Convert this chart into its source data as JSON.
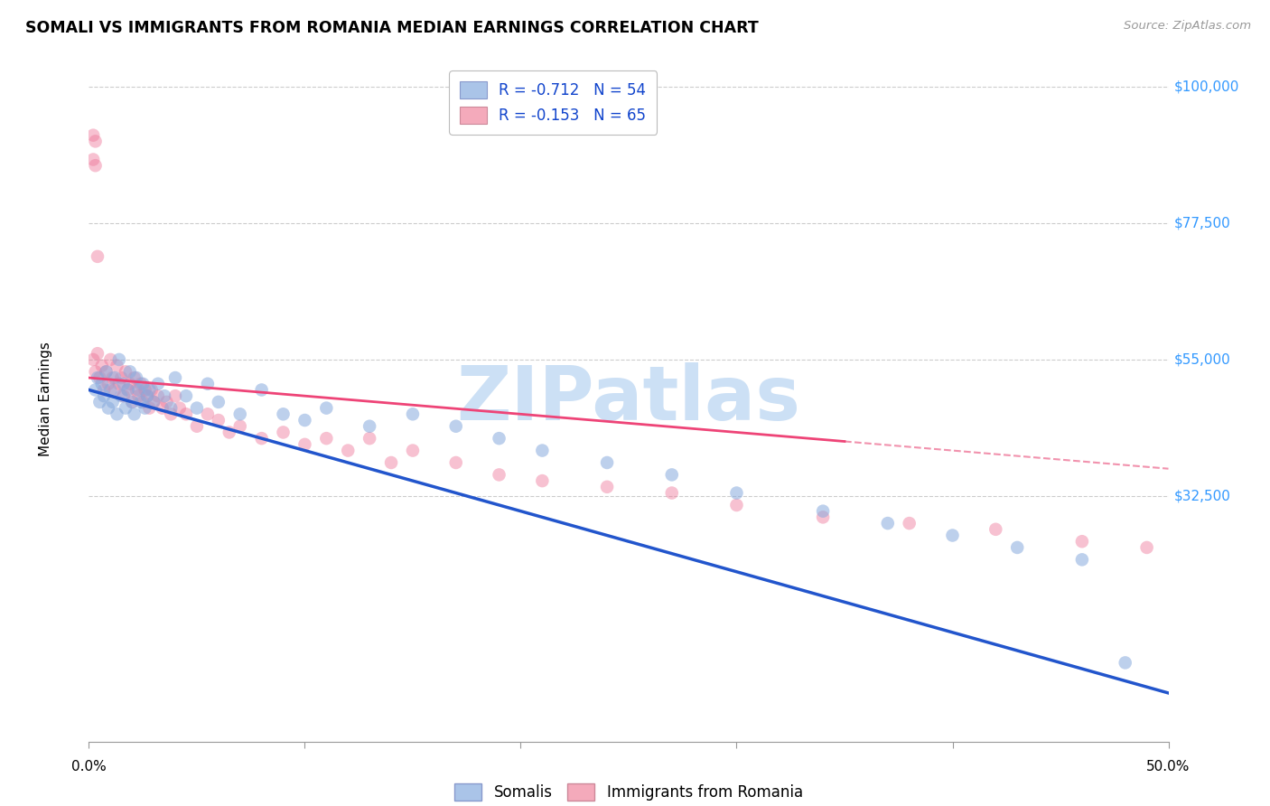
{
  "title": "SOMALI VS IMMIGRANTS FROM ROMANIA MEDIAN EARNINGS CORRELATION CHART",
  "source": "Source: ZipAtlas.com",
  "ylabel": "Median Earnings",
  "xmin": 0.0,
  "xmax": 0.5,
  "ymin": -8000,
  "ymax": 105000,
  "ytick_vals": [
    32500,
    55000,
    77500,
    100000
  ],
  "ytick_labels": [
    "$32,500",
    "$55,000",
    "$77,500",
    "$100,000"
  ],
  "blue_scatter_color": "#88aadd",
  "pink_scatter_color": "#ee7799",
  "blue_line_color": "#2255cc",
  "pink_line_color": "#ee4477",
  "dashed_line_color": "#ee7799",
  "grid_color": "#cccccc",
  "watermark_color": "#cce0f5",
  "legend_bottom": [
    "Somalis",
    "Immigrants from Romania"
  ],
  "blue_legend_color": "#aac4e8",
  "pink_legend_color": "#f4aabb",
  "somali_x": [
    0.003,
    0.004,
    0.005,
    0.006,
    0.007,
    0.008,
    0.009,
    0.01,
    0.011,
    0.012,
    0.013,
    0.014,
    0.015,
    0.016,
    0.017,
    0.018,
    0.019,
    0.02,
    0.021,
    0.022,
    0.023,
    0.024,
    0.025,
    0.026,
    0.027,
    0.028,
    0.03,
    0.032,
    0.035,
    0.038,
    0.04,
    0.045,
    0.05,
    0.055,
    0.06,
    0.07,
    0.08,
    0.09,
    0.1,
    0.11,
    0.13,
    0.15,
    0.17,
    0.19,
    0.21,
    0.24,
    0.27,
    0.3,
    0.34,
    0.37,
    0.4,
    0.43,
    0.46,
    0.48
  ],
  "somali_y": [
    50000,
    52000,
    48000,
    51000,
    49000,
    53000,
    47000,
    50000,
    48000,
    52000,
    46000,
    55000,
    49000,
    51000,
    47000,
    50000,
    53000,
    48000,
    46000,
    52000,
    50000,
    48000,
    51000,
    47000,
    49000,
    50000,
    48000,
    51000,
    49000,
    47000,
    52000,
    49000,
    47000,
    51000,
    48000,
    46000,
    50000,
    46000,
    45000,
    47000,
    44000,
    46000,
    44000,
    42000,
    40000,
    38000,
    36000,
    33000,
    30000,
    28000,
    26000,
    24000,
    22000,
    5000
  ],
  "romania_x": [
    0.002,
    0.003,
    0.004,
    0.005,
    0.006,
    0.007,
    0.008,
    0.009,
    0.01,
    0.011,
    0.012,
    0.013,
    0.014,
    0.015,
    0.016,
    0.017,
    0.018,
    0.019,
    0.02,
    0.021,
    0.022,
    0.023,
    0.024,
    0.025,
    0.026,
    0.027,
    0.028,
    0.029,
    0.03,
    0.032,
    0.034,
    0.036,
    0.038,
    0.04,
    0.042,
    0.045,
    0.05,
    0.055,
    0.06,
    0.065,
    0.07,
    0.08,
    0.09,
    0.1,
    0.11,
    0.12,
    0.13,
    0.14,
    0.15,
    0.17,
    0.19,
    0.21,
    0.24,
    0.27,
    0.3,
    0.34,
    0.38,
    0.42,
    0.46,
    0.49,
    0.002,
    0.003,
    0.002,
    0.003,
    0.004
  ],
  "romania_y": [
    55000,
    53000,
    56000,
    52000,
    54000,
    50000,
    53000,
    51000,
    55000,
    52000,
    50000,
    54000,
    51000,
    52000,
    49000,
    53000,
    50000,
    51000,
    48000,
    52000,
    50000,
    49000,
    51000,
    48000,
    50000,
    49000,
    47000,
    50000,
    48000,
    49000,
    47000,
    48000,
    46000,
    49000,
    47000,
    46000,
    44000,
    46000,
    45000,
    43000,
    44000,
    42000,
    43000,
    41000,
    42000,
    40000,
    42000,
    38000,
    40000,
    38000,
    36000,
    35000,
    34000,
    33000,
    31000,
    29000,
    28000,
    27000,
    25000,
    24000,
    92000,
    91000,
    88000,
    87000,
    72000
  ]
}
